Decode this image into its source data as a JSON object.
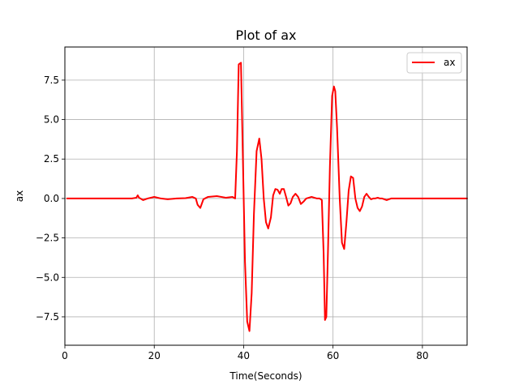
{
  "chart_data": {
    "type": "line",
    "title": "Plot of ax",
    "xlabel": "Time(Seconds)",
    "ylabel": "ax",
    "xlim": [
      0,
      90
    ],
    "ylim": [
      -9.3,
      9.6
    ],
    "xticks": [
      0,
      20,
      40,
      60,
      80
    ],
    "xtick_labels": [
      "0",
      "20",
      "40",
      "60",
      "80"
    ],
    "yticks": [
      -7.5,
      -5.0,
      -2.5,
      0.0,
      2.5,
      5.0,
      7.5
    ],
    "ytick_labels": [
      "−7.5",
      "−5.0",
      "−2.5",
      "0.0",
      "2.5",
      "5.0",
      "7.5"
    ],
    "grid": true,
    "legend_position": "top-right",
    "series": [
      {
        "name": "ax",
        "color": "#ff0000",
        "x": [
          0.5,
          5,
          10,
          15,
          16,
          16.3,
          16.6,
          17.5,
          18.5,
          20,
          21.5,
          23,
          25,
          27,
          28.5,
          29.3,
          29.7,
          30.3,
          31,
          32,
          34,
          36,
          37.5,
          38.1,
          38.5,
          38.9,
          39.4,
          39.8,
          40.3,
          40.8,
          41.3,
          41.8,
          42.3,
          42.9,
          43.5,
          44,
          44.5,
          45,
          45.5,
          46.1,
          46.6,
          47.1,
          47.6,
          48.1,
          48.5,
          49,
          49.5,
          50,
          50.5,
          51,
          51.6,
          52.2,
          52.8,
          53.4,
          54,
          54.6,
          55.2,
          55.8,
          56.4,
          57,
          57.5,
          57.9,
          58.2,
          58.5,
          58.9,
          59.3,
          59.8,
          60.2,
          60.5,
          60.9,
          61.5,
          62,
          62.5,
          63,
          63.5,
          64,
          64.5,
          65,
          65.5,
          66,
          66.5,
          67,
          67.5,
          68,
          68.5,
          69,
          69.4,
          70,
          70.5,
          71,
          72,
          73,
          74,
          75,
          77,
          79,
          82,
          85,
          88,
          90
        ],
        "y": [
          0.0,
          0.0,
          0.0,
          0.0,
          0.05,
          0.2,
          0.05,
          -0.1,
          0.0,
          0.1,
          0.0,
          -0.05,
          0.0,
          0.02,
          0.1,
          0.0,
          -0.4,
          -0.6,
          -0.05,
          0.1,
          0.15,
          0.05,
          0.1,
          0.0,
          3.0,
          8.5,
          8.6,
          3.0,
          -4.0,
          -7.8,
          -8.4,
          -6.0,
          -1.0,
          3.0,
          3.8,
          2.5,
          0.0,
          -1.5,
          -1.9,
          -1.2,
          0.2,
          0.6,
          0.55,
          0.3,
          0.6,
          0.6,
          0.1,
          -0.45,
          -0.3,
          0.1,
          0.3,
          0.1,
          -0.35,
          -0.2,
          0.0,
          0.05,
          0.1,
          0.05,
          0.0,
          0.0,
          -0.1,
          -3.5,
          -7.7,
          -7.5,
          -3.0,
          2.0,
          6.5,
          7.1,
          6.8,
          4.5,
          0.0,
          -2.8,
          -3.2,
          -1.5,
          0.5,
          1.4,
          1.3,
          0.0,
          -0.6,
          -0.8,
          -0.5,
          0.1,
          0.3,
          0.1,
          -0.05,
          0.0,
          0.0,
          0.05,
          0.0,
          0.0,
          -0.1,
          0.0,
          0.0,
          0.0,
          0.0,
          0.0,
          0.0,
          0.0,
          0.0,
          0.0
        ]
      }
    ]
  }
}
